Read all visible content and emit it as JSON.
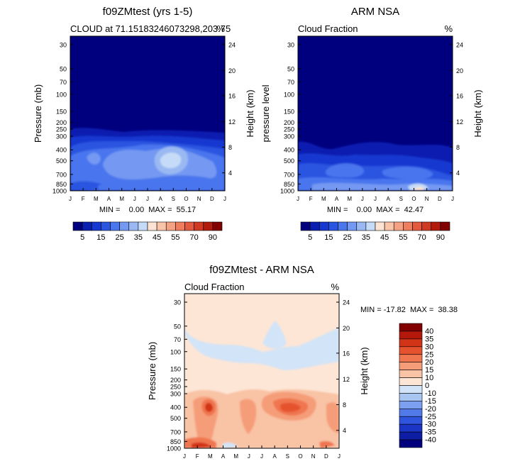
{
  "chart_data": [
    {
      "type": "heatmap",
      "title": "f09ZMtest (yrs 1-5)",
      "subtitle_left": "CLOUD at 71.15183246073298,203.75",
      "unit": "%",
      "ylabel": "Pressure (mb)",
      "ylabel_right": "Height (km)",
      "yticks": [
        "30",
        "50",
        "70",
        "100",
        "150",
        "200",
        "250",
        "300",
        "400",
        "500",
        "700",
        "850",
        "1000"
      ],
      "yticks_right": [
        "24",
        "20",
        "16",
        "12",
        "8",
        "4"
      ],
      "xticks": [
        "J",
        "F",
        "M",
        "A",
        "M",
        "J",
        "J",
        "A",
        "S",
        "O",
        "N",
        "D",
        "J"
      ],
      "stats": "MIN =    0.00  MAX =  55.17",
      "min": 0.0,
      "max": 55.17,
      "colorbar_labels": [
        "5",
        "15",
        "25",
        "35",
        "45",
        "55",
        "70",
        "90"
      ]
    },
    {
      "type": "heatmap",
      "title": "ARM NSA",
      "subtitle_left": "Cloud Fraction",
      "unit": "%",
      "ylabel": "pressure level",
      "ylabel_right": "Height (km)",
      "yticks": [
        "30",
        "50",
        "70",
        "100",
        "150",
        "200",
        "250",
        "300",
        "400",
        "500",
        "700",
        "850",
        "1000"
      ],
      "yticks_right": [
        "24",
        "20",
        "16",
        "12",
        "8",
        "4"
      ],
      "xticks": [
        "J",
        "F",
        "M",
        "A",
        "M",
        "J",
        "J",
        "A",
        "S",
        "O",
        "N",
        "D",
        "J"
      ],
      "stats": "MIN =    0.00  MAX =  42.47",
      "min": 0.0,
      "max": 42.47,
      "colorbar_labels": [
        "5",
        "15",
        "25",
        "35",
        "45",
        "55",
        "70",
        "90"
      ]
    },
    {
      "type": "heatmap",
      "title": "f09ZMtest - ARM NSA",
      "subtitle_left": "Cloud Fraction",
      "unit": "%",
      "ylabel": "Pressure (mb)",
      "ylabel_right": "Height (km)",
      "yticks": [
        "30",
        "50",
        "70",
        "100",
        "150",
        "200",
        "250",
        "300",
        "400",
        "500",
        "700",
        "850",
        "1000"
      ],
      "yticks_right": [
        "24",
        "20",
        "16",
        "12",
        "8",
        "4"
      ],
      "xticks": [
        "J",
        "F",
        "M",
        "A",
        "M",
        "J",
        "J",
        "A",
        "S",
        "O",
        "N",
        "D",
        "J"
      ],
      "stats": "MIN = -17.82  MAX =  38.38",
      "min": -17.82,
      "max": 38.38,
      "colorbar_labels": [
        "40",
        "35",
        "30",
        "25",
        "20",
        "15",
        "10",
        "0",
        "-10",
        "-15",
        "-20",
        "-25",
        "-30",
        "-35",
        "-40"
      ]
    }
  ],
  "colors": {
    "seq": [
      "#00007f",
      "#0a1fb0",
      "#1638d0",
      "#2a55e0",
      "#4a76ee",
      "#7499f2",
      "#9ab8f2",
      "#c6dbf7",
      "#fde3d3",
      "#f9c4a8",
      "#f4a283",
      "#ee7e5e",
      "#e45a3e",
      "#d03a22",
      "#b21a0c",
      "#820000"
    ],
    "div": [
      "#820000",
      "#b4180a",
      "#d23418",
      "#e5522e",
      "#ef764f",
      "#f59d78",
      "#f9c3a6",
      "#fde6d6",
      "#d2e4f7",
      "#a9c6f3",
      "#7d9ff0",
      "#5279e8",
      "#2f55df",
      "#1b36c6",
      "#0d1ea4",
      "#00007f"
    ]
  }
}
